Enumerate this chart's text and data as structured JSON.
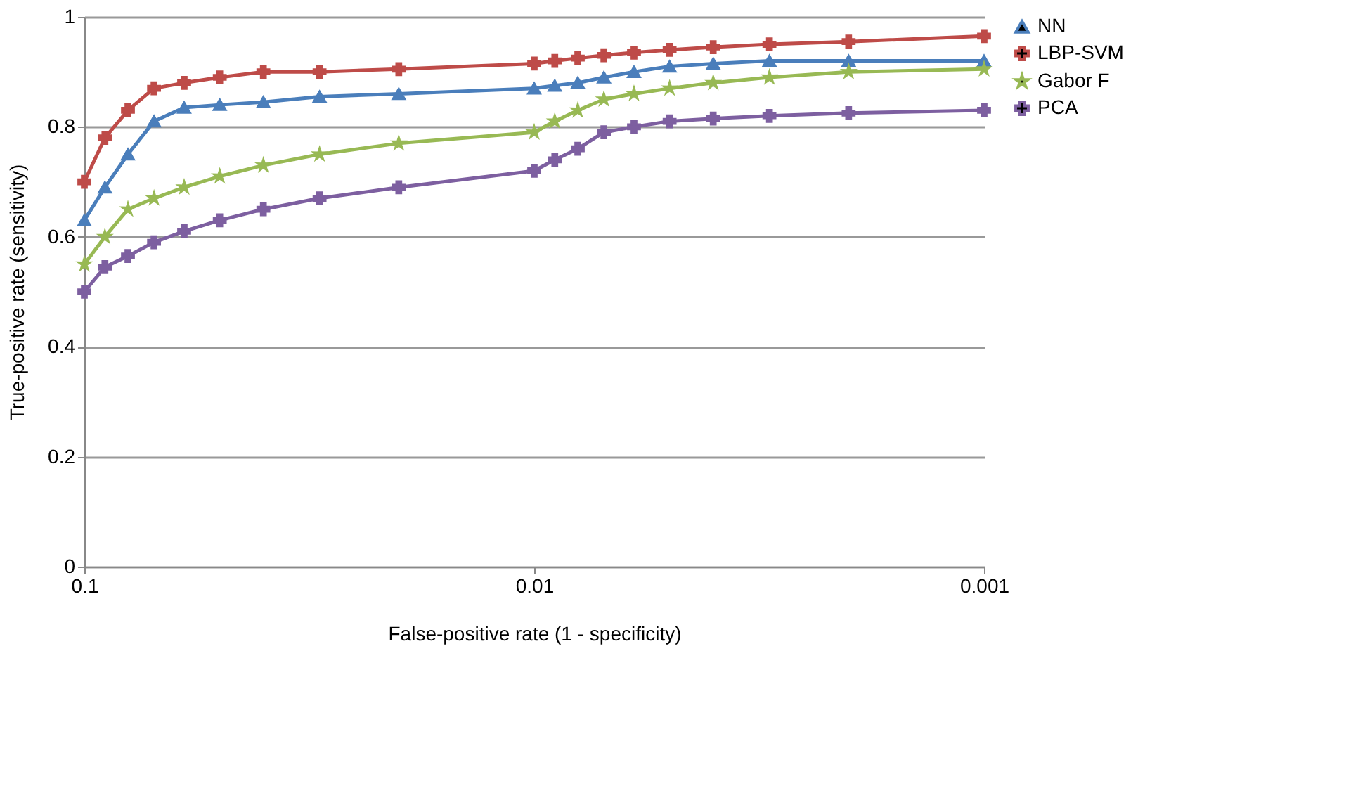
{
  "chart_data": {
    "type": "line",
    "xlabel": "False-positive rate (1 - specificity)",
    "ylabel": "True-positive rate (sensitivity)",
    "x": [
      0.1,
      0.09,
      0.08,
      0.07,
      0.06,
      0.05,
      0.04,
      0.03,
      0.02,
      0.01,
      0.009,
      0.008,
      0.007,
      0.006,
      0.005,
      0.004,
      0.003,
      0.002,
      0.001
    ],
    "series": [
      {
        "name": "NN",
        "color": "#4a7ebb",
        "marker": "triangle",
        "values": [
          0.63,
          0.69,
          0.75,
          0.81,
          0.835,
          0.84,
          0.845,
          0.855,
          0.86,
          0.87,
          0.875,
          0.88,
          0.89,
          0.9,
          0.91,
          0.915,
          0.92,
          0.92,
          0.92
        ]
      },
      {
        "name": "LBP-SVM",
        "color": "#be4b48",
        "marker": "cross",
        "values": [
          0.7,
          0.78,
          0.83,
          0.87,
          0.88,
          0.89,
          0.9,
          0.9,
          0.905,
          0.915,
          0.92,
          0.925,
          0.93,
          0.935,
          0.94,
          0.945,
          0.95,
          0.955,
          0.965
        ]
      },
      {
        "name": "Gabor F",
        "color": "#98b954",
        "marker": "star",
        "values": [
          0.55,
          0.6,
          0.65,
          0.67,
          0.69,
          0.71,
          0.73,
          0.75,
          0.77,
          0.79,
          0.81,
          0.83,
          0.85,
          0.86,
          0.87,
          0.88,
          0.89,
          0.9,
          0.905
        ]
      },
      {
        "name": "PCA",
        "color": "#7d5fa0",
        "marker": "cross",
        "values": [
          0.5,
          0.545,
          0.565,
          0.59,
          0.61,
          0.63,
          0.65,
          0.67,
          0.69,
          0.72,
          0.74,
          0.76,
          0.79,
          0.8,
          0.81,
          0.815,
          0.82,
          0.825,
          0.83
        ]
      }
    ],
    "log": "x",
    "xlim": [
      0.1,
      0.001
    ],
    "xticks": [
      0.1,
      0.01,
      0.001
    ],
    "ylim": [
      0,
      1
    ],
    "yticks": [
      0,
      0.2,
      0.4,
      0.6,
      0.8,
      1
    ],
    "grid": "y",
    "legend": "right",
    "line_style": "solid"
  }
}
